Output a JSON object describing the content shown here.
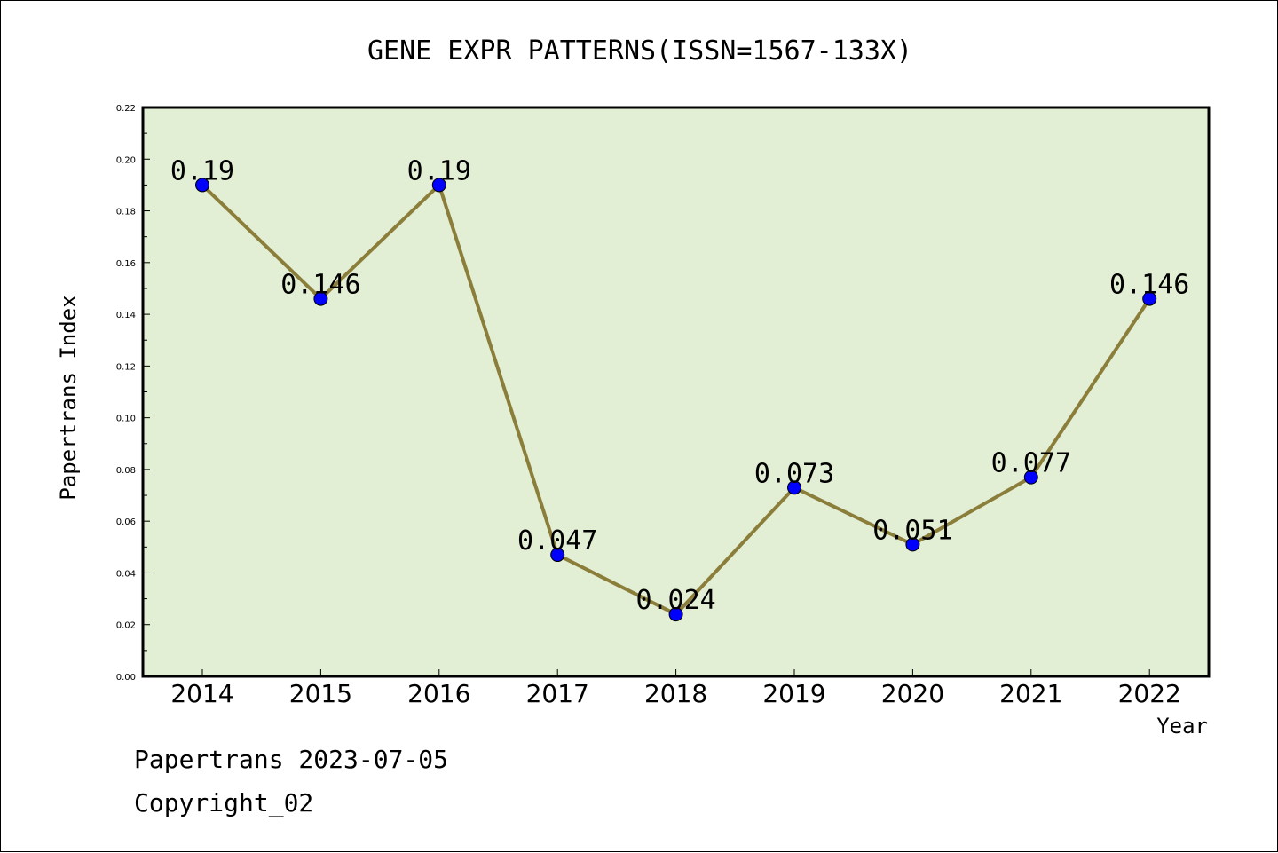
{
  "chart_data": {
    "type": "line",
    "title": "GENE EXPR PATTERNS(ISSN=1567-133X)",
    "xlabel": "Year",
    "ylabel": "Papertrans Index",
    "categories": [
      "2014",
      "2015",
      "2016",
      "2017",
      "2018",
      "2019",
      "2020",
      "2021",
      "2022"
    ],
    "series": [
      {
        "values": [
          0.19,
          0.146,
          0.19,
          0.047,
          0.024,
          0.073,
          0.051,
          0.077,
          0.146
        ],
        "data_labels": [
          "0.19",
          "0.146",
          "0.19",
          "0.047",
          "0.024",
          "0.073",
          "0.051",
          "0.077",
          "0.146"
        ]
      }
    ],
    "ylim": [
      0,
      0.22
    ],
    "yticks": [
      "0.00",
      "0.02",
      "0.04",
      "0.06",
      "0.08",
      "0.10",
      "0.12",
      "0.14",
      "0.16",
      "0.18",
      "0.20",
      "0.22"
    ],
    "grid": false,
    "colors": {
      "plot_background": "#e2efd4",
      "line": "#8b7d3a",
      "marker": "#0000ff"
    }
  },
  "footer": {
    "date_line": "Papertrans 2023-07-05",
    "copyright": "Copyright_02"
  }
}
